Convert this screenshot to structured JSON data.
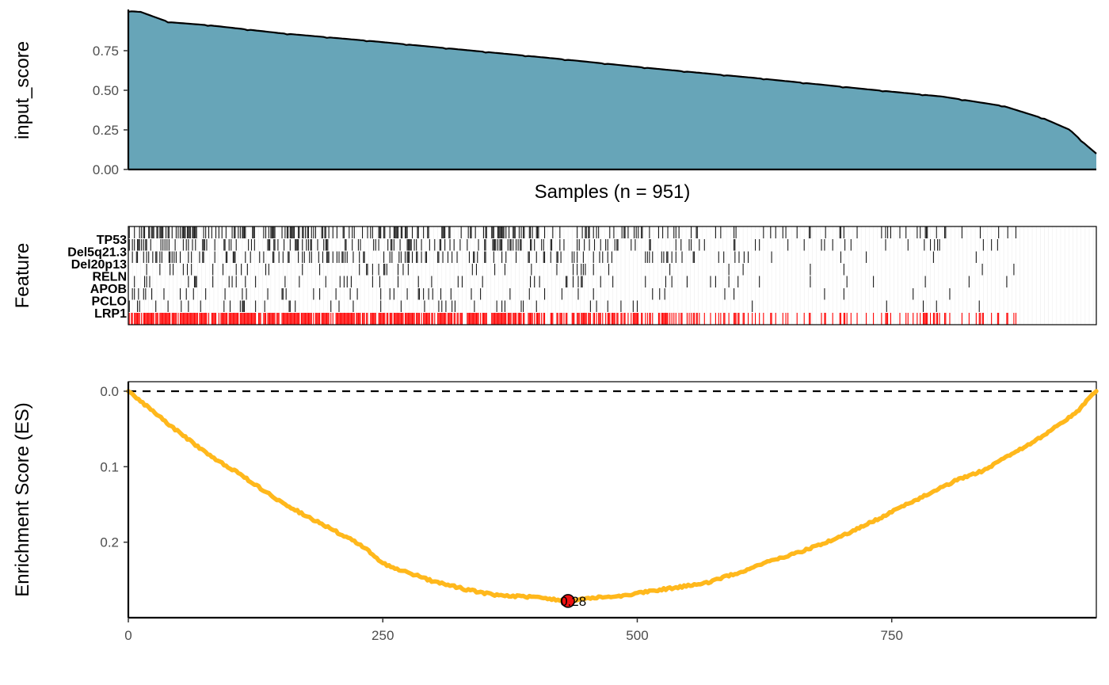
{
  "chart_data": [
    {
      "type": "area",
      "panel": "score",
      "ylabel": "input_score",
      "xlabel": "Samples (n = 951)",
      "n": 951,
      "ylim": [
        0,
        1.0
      ],
      "yticks": [
        "0.00",
        "0.25",
        "0.50",
        "0.75"
      ],
      "ytick_values": [
        0,
        0.25,
        0.5,
        0.75
      ],
      "profile": [
        {
          "i": 0,
          "v": 1.0
        },
        {
          "i": 12,
          "v": 0.995
        },
        {
          "i": 40,
          "v": 0.93
        },
        {
          "i": 80,
          "v": 0.91
        },
        {
          "i": 150,
          "v": 0.86
        },
        {
          "i": 240,
          "v": 0.81
        },
        {
          "i": 330,
          "v": 0.755
        },
        {
          "i": 420,
          "v": 0.7
        },
        {
          "i": 520,
          "v": 0.635
        },
        {
          "i": 620,
          "v": 0.575
        },
        {
          "i": 720,
          "v": 0.51
        },
        {
          "i": 800,
          "v": 0.46
        },
        {
          "i": 860,
          "v": 0.4
        },
        {
          "i": 900,
          "v": 0.32
        },
        {
          "i": 925,
          "v": 0.25
        },
        {
          "i": 940,
          "v": 0.16
        },
        {
          "i": 951,
          "v": 0.1
        }
      ],
      "fill_color": "#67a5b8",
      "line_color": "#000000"
    },
    {
      "type": "heatmap",
      "panel": "features",
      "ylabel": "Feature",
      "features": [
        "TP53",
        "Del5q21.3",
        "Del20p13",
        "RELN",
        "APOB",
        "PCLO",
        "LRP1"
      ],
      "feature_density": [
        0.5,
        0.35,
        0.3,
        0.12,
        0.1,
        0.1,
        0.1
      ],
      "feature_extent": [
        0.92,
        0.9,
        0.91,
        0.93,
        0.93,
        0.85,
        0.88
      ],
      "combined_density": 0.6,
      "combined_extent": 0.93,
      "hit_color": "#1a1a1a",
      "combined_color": "#ff0000"
    },
    {
      "type": "line",
      "panel": "es",
      "ylabel": "Enrichment Score (ES)",
      "xticks": [
        "0",
        "250",
        "500",
        "750"
      ],
      "xtick_values": [
        0,
        250,
        500,
        750
      ],
      "xlim": [
        0,
        951
      ],
      "yticks": [
        "0.0",
        "0.1",
        "0.2"
      ],
      "ytick_values": [
        0.0,
        0.1,
        0.2
      ],
      "ylim_reversed": [
        0,
        0.3
      ],
      "reference_line": 0,
      "x": [
        0,
        20,
        50,
        80,
        110,
        140,
        170,
        200,
        230,
        250,
        270,
        300,
        330,
        360,
        390,
        420,
        432,
        450,
        480,
        510,
        540,
        570,
        600,
        630,
        660,
        690,
        720,
        750,
        780,
        810,
        840,
        870,
        900,
        930,
        951
      ],
      "y": [
        0,
        0.022,
        0.055,
        0.085,
        0.11,
        0.138,
        0.162,
        0.183,
        0.205,
        0.228,
        0.238,
        0.252,
        0.262,
        0.27,
        0.272,
        0.276,
        0.28,
        0.274,
        0.272,
        0.265,
        0.26,
        0.253,
        0.24,
        0.225,
        0.213,
        0.198,
        0.18,
        0.16,
        0.14,
        0.12,
        0.105,
        0.082,
        0.058,
        0.03,
        0
      ],
      "peak": {
        "x": 432,
        "y": 0.28,
        "label": "0.28"
      },
      "line_color": "#ffb81c",
      "peak_color": "#ee1111"
    }
  ]
}
